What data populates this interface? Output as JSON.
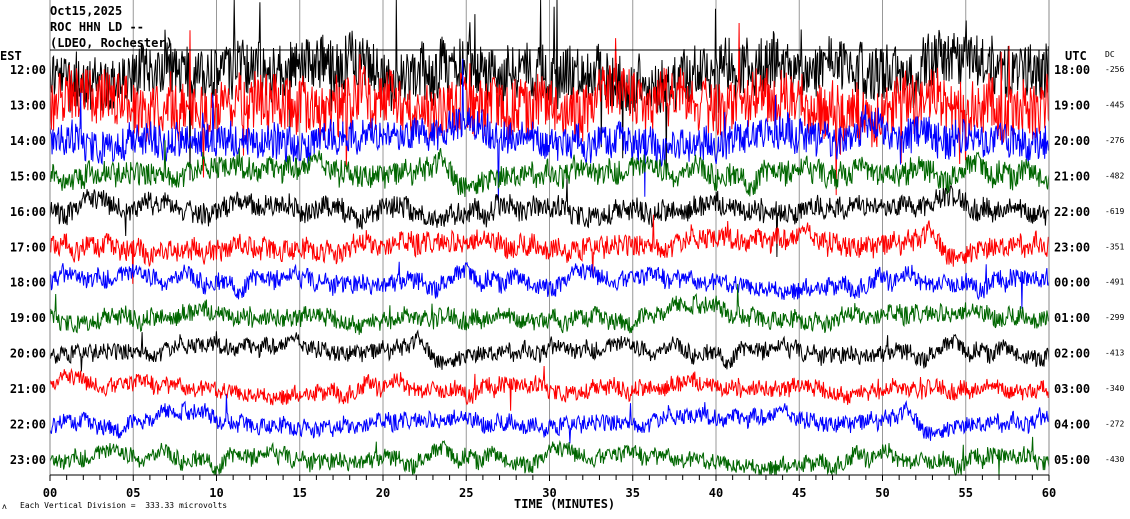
{
  "header": {
    "date": "Oct15,2025",
    "station": "ROC HHN LD --",
    "network": "(LDEO, Rochester)"
  },
  "chart_data": {
    "type": "line",
    "title": "Oct15,2025 ROC HHN LD -- (LDEO, Rochester)",
    "xlabel": "TIME (MINUTES)",
    "left_axis_label": "EST",
    "right_axis_label": "UTC",
    "dc_label": "DC",
    "xlim": [
      0,
      60
    ],
    "x_ticks": [
      "00",
      "05",
      "10",
      "15",
      "20",
      "25",
      "30",
      "35",
      "40",
      "45",
      "50",
      "55",
      "60"
    ],
    "scale_note": "Each Vertical Division =  333.33 microvolts",
    "grid": "vertical every 5 minutes",
    "series_colors": [
      "#000000",
      "#ff0000",
      "#0000ff",
      "#006600"
    ],
    "rows": [
      {
        "est": "12:00",
        "utc": "18:00",
        "dc": "-256",
        "activity": 1.0
      },
      {
        "est": "13:00",
        "utc": "19:00",
        "dc": "-445",
        "activity": 1.0
      },
      {
        "est": "14:00",
        "utc": "20:00",
        "dc": "-276",
        "activity": 0.7
      },
      {
        "est": "15:00",
        "utc": "21:00",
        "dc": "-482",
        "activity": 0.5
      },
      {
        "est": "16:00",
        "utc": "22:00",
        "dc": "-619",
        "activity": 0.45
      },
      {
        "est": "17:00",
        "utc": "23:00",
        "dc": "-351",
        "activity": 0.45
      },
      {
        "est": "18:00",
        "utc": "00:00",
        "dc": "-491",
        "activity": 0.35
      },
      {
        "est": "19:00",
        "utc": "01:00",
        "dc": "-299",
        "activity": 0.35
      },
      {
        "est": "20:00",
        "utc": "02:00",
        "dc": "-413",
        "activity": 0.3
      },
      {
        "est": "21:00",
        "utc": "03:00",
        "dc": "-340",
        "activity": 0.3
      },
      {
        "est": "22:00",
        "utc": "04:00",
        "dc": "-272",
        "activity": 0.3
      },
      {
        "est": "23:00",
        "utc": "05:00",
        "dc": "-430",
        "activity": 0.3
      }
    ]
  }
}
